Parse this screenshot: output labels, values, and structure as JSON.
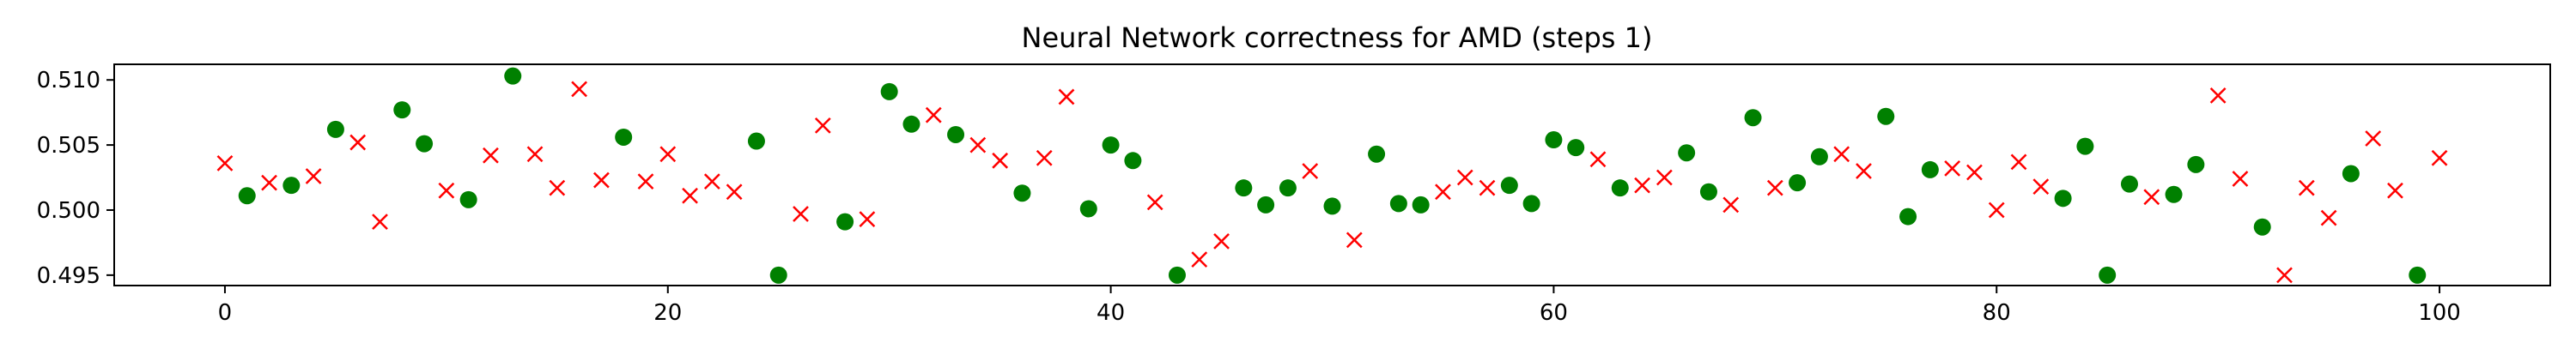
{
  "chart_data": {
    "type": "scatter",
    "title": "Neural Network correctness for AMD (steps 1)",
    "xlabel": "",
    "ylabel": "",
    "xlim": [
      -5,
      105
    ],
    "ylim": [
      0.4942,
      0.5112
    ],
    "xticks": [
      0,
      20,
      40,
      60,
      80,
      100
    ],
    "yticks": [
      0.495,
      0.5,
      0.505,
      0.51
    ],
    "ytick_labels": [
      "0.495",
      "0.500",
      "0.505",
      "0.510"
    ],
    "grid": false,
    "legend": "none",
    "series": [
      {
        "marker": "circle",
        "color": "#008000",
        "x": [
          1,
          3,
          5,
          8,
          9,
          11,
          13,
          18,
          24,
          25,
          28,
          30,
          31,
          33,
          36,
          39,
          40,
          41,
          43,
          46,
          47,
          48,
          50,
          52,
          53,
          54,
          58,
          59,
          60,
          61,
          63,
          66,
          67,
          69,
          71,
          72,
          75,
          76,
          77,
          83,
          84,
          85,
          86,
          88,
          89,
          92,
          96,
          99
        ],
        "y": [
          0.5011,
          0.5019,
          0.5062,
          0.5077,
          0.5051,
          0.5008,
          0.5103,
          0.5056,
          0.5053,
          0.495,
          0.4991,
          0.5091,
          0.5066,
          0.5058,
          0.5013,
          0.5001,
          0.505,
          0.5038,
          0.495,
          0.5017,
          0.5004,
          0.5017,
          0.5003,
          0.5043,
          0.5005,
          0.5004,
          0.5019,
          0.5005,
          0.5054,
          0.5048,
          0.5017,
          0.5044,
          0.5014,
          0.5071,
          0.5021,
          0.5041,
          0.5072,
          0.4995,
          0.5031,
          0.5009,
          0.5049,
          0.495,
          0.502,
          0.5012,
          0.5035,
          0.4987,
          0.5028,
          0.495
        ]
      },
      {
        "marker": "x",
        "color": "#ff0000",
        "x": [
          0,
          2,
          4,
          6,
          7,
          10,
          12,
          14,
          15,
          16,
          17,
          19,
          20,
          21,
          22,
          23,
          26,
          27,
          29,
          32,
          34,
          35,
          37,
          38,
          42,
          44,
          45,
          49,
          51,
          55,
          56,
          57,
          62,
          64,
          65,
          68,
          70,
          73,
          74,
          78,
          79,
          80,
          81,
          82,
          87,
          90,
          91,
          93,
          94,
          95,
          97,
          98,
          100
        ],
        "y": [
          0.5036,
          0.5021,
          0.5026,
          0.5052,
          0.4991,
          0.5015,
          0.5042,
          0.5043,
          0.5017,
          0.5093,
          0.5023,
          0.5022,
          0.5043,
          0.5011,
          0.5022,
          0.5014,
          0.4997,
          0.5065,
          0.4993,
          0.5073,
          0.505,
          0.5038,
          0.504,
          0.5087,
          0.5006,
          0.4962,
          0.4976,
          0.503,
          0.4977,
          0.5014,
          0.5025,
          0.5017,
          0.5039,
          0.5019,
          0.5025,
          0.5004,
          0.5017,
          0.5043,
          0.503,
          0.5032,
          0.5029,
          0.5,
          0.5037,
          0.5018,
          0.501,
          0.5088,
          0.5024,
          0.495,
          0.5017,
          0.4994,
          0.5055,
          0.5015,
          0.504
        ]
      }
    ]
  }
}
